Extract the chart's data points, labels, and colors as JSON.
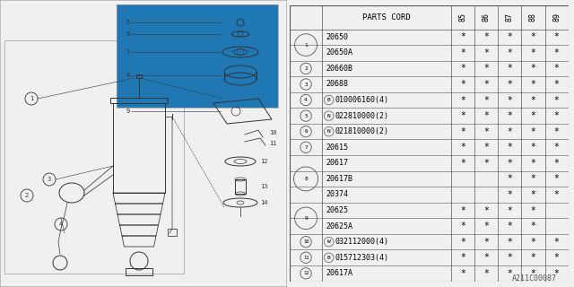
{
  "code": "A211C00087",
  "table": {
    "header_col": "PARTS CORD",
    "years": [
      "85",
      "86",
      "87",
      "88",
      "89"
    ],
    "rows": [
      {
        "ref": "1",
        "ref_span": 2,
        "special": "",
        "part": "20650",
        "marks": [
          true,
          true,
          true,
          true,
          true
        ]
      },
      {
        "ref": "",
        "ref_span": 0,
        "special": "",
        "part": "20650A",
        "marks": [
          true,
          true,
          true,
          true,
          true
        ]
      },
      {
        "ref": "2",
        "ref_span": 1,
        "special": "",
        "part": "20660B",
        "marks": [
          true,
          true,
          true,
          true,
          true
        ]
      },
      {
        "ref": "3",
        "ref_span": 1,
        "special": "",
        "part": "20688",
        "marks": [
          true,
          true,
          true,
          true,
          true
        ]
      },
      {
        "ref": "4",
        "ref_span": 1,
        "special": "B",
        "part": "010006160(4)",
        "marks": [
          true,
          true,
          true,
          true,
          true
        ]
      },
      {
        "ref": "5",
        "ref_span": 1,
        "special": "N",
        "part": "022810000(2)",
        "marks": [
          true,
          true,
          true,
          true,
          true
        ]
      },
      {
        "ref": "6",
        "ref_span": 1,
        "special": "N",
        "part": "021810000(2)",
        "marks": [
          true,
          true,
          true,
          true,
          true
        ]
      },
      {
        "ref": "7",
        "ref_span": 1,
        "special": "",
        "part": "20615",
        "marks": [
          true,
          true,
          true,
          true,
          true
        ]
      },
      {
        "ref": "8",
        "ref_span": 3,
        "special": "",
        "part": "20617",
        "marks": [
          true,
          true,
          true,
          true,
          true
        ]
      },
      {
        "ref": "",
        "ref_span": 0,
        "special": "",
        "part": "20617B",
        "marks": [
          false,
          false,
          true,
          true,
          true
        ]
      },
      {
        "ref": "",
        "ref_span": 0,
        "special": "",
        "part": "20374",
        "marks": [
          false,
          false,
          true,
          true,
          true
        ]
      },
      {
        "ref": "9",
        "ref_span": 2,
        "special": "",
        "part": "20625",
        "marks": [
          true,
          true,
          true,
          true,
          false
        ]
      },
      {
        "ref": "",
        "ref_span": 0,
        "special": "",
        "part": "20625A",
        "marks": [
          true,
          true,
          true,
          true,
          false
        ]
      },
      {
        "ref": "10",
        "ref_span": 1,
        "special": "W",
        "part": "032112000(4)",
        "marks": [
          true,
          true,
          true,
          true,
          true
        ]
      },
      {
        "ref": "11",
        "ref_span": 1,
        "special": "B",
        "part": "015712303(4)",
        "marks": [
          true,
          true,
          true,
          true,
          true
        ]
      },
      {
        "ref": "12",
        "ref_span": 1,
        "special": "",
        "part": "20617A",
        "marks": [
          true,
          true,
          true,
          true,
          true
        ]
      }
    ]
  },
  "bg_color": "#f0f0f0",
  "line_color": "#333333",
  "text_color": "#000000"
}
